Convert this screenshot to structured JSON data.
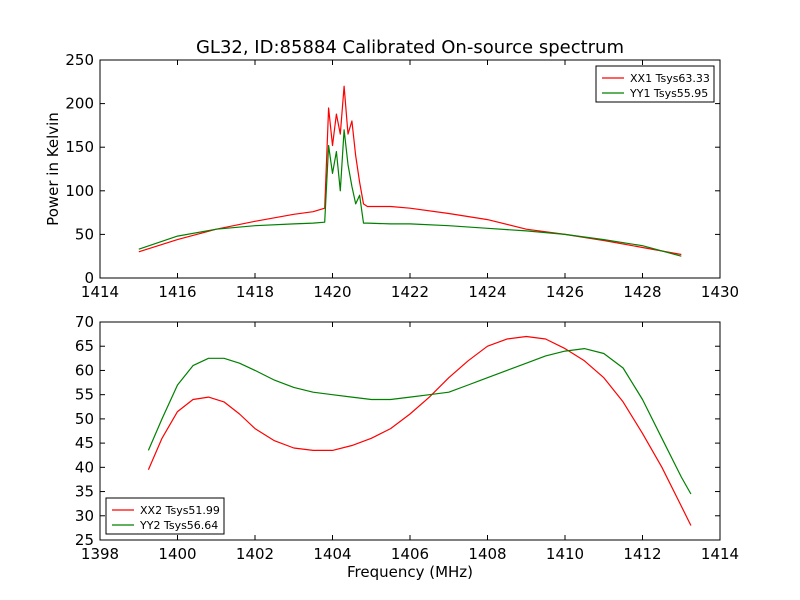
{
  "chart_data": [
    {
      "type": "line",
      "title": "GL32, ID:85884 Calibrated On-source spectrum",
      "xlabel": "",
      "ylabel": "Power in Kelvin",
      "xlim": [
        1414,
        1430
      ],
      "ylim": [
        0,
        250
      ],
      "xticks": [
        1414,
        1416,
        1418,
        1420,
        1422,
        1424,
        1426,
        1428,
        1430
      ],
      "yticks": [
        0,
        50,
        100,
        150,
        200,
        250
      ],
      "grid": false,
      "legend": "top-right",
      "series": [
        {
          "name": "XX1 Tsys63.33",
          "color": "#ff0000",
          "x": [
            1415,
            1416,
            1417,
            1418,
            1419,
            1419.5,
            1419.8,
            1419.9,
            1420.0,
            1420.1,
            1420.2,
            1420.3,
            1420.4,
            1420.5,
            1420.6,
            1420.7,
            1420.8,
            1420.9,
            1421.5,
            1422,
            1423,
            1424,
            1425,
            1426,
            1427,
            1428,
            1429
          ],
          "values": [
            30,
            44,
            56,
            65,
            73,
            76,
            80,
            195,
            152,
            188,
            165,
            220,
            165,
            180,
            140,
            110,
            85,
            82,
            82,
            80,
            74,
            67,
            56,
            50,
            43,
            35,
            27
          ]
        },
        {
          "name": "YY1 Tsys55.95",
          "color": "#008000",
          "x": [
            1415,
            1416,
            1417,
            1418,
            1419,
            1419.5,
            1419.8,
            1419.9,
            1420.0,
            1420.1,
            1420.2,
            1420.3,
            1420.4,
            1420.5,
            1420.6,
            1420.7,
            1420.8,
            1420.9,
            1421.5,
            1422,
            1423,
            1424,
            1425,
            1426,
            1427,
            1428,
            1429
          ],
          "values": [
            33,
            48,
            56,
            60,
            62,
            63,
            64,
            152,
            120,
            145,
            100,
            170,
            130,
            105,
            85,
            95,
            63,
            63,
            62,
            62,
            60,
            57,
            54,
            50,
            44,
            37,
            25
          ]
        }
      ]
    },
    {
      "type": "line",
      "title": "",
      "xlabel": "Frequency (MHz)",
      "ylabel": "",
      "xlim": [
        1398,
        1414
      ],
      "ylim": [
        25,
        70
      ],
      "xticks": [
        1398,
        1400,
        1402,
        1404,
        1406,
        1408,
        1410,
        1412,
        1414
      ],
      "yticks": [
        25,
        30,
        35,
        40,
        45,
        50,
        55,
        60,
        65,
        70
      ],
      "grid": false,
      "legend": "bottom-left",
      "series": [
        {
          "name": "XX2 Tsys51.99",
          "color": "#ff0000",
          "x": [
            1399.25,
            1399.6,
            1400,
            1400.4,
            1400.8,
            1401.2,
            1401.6,
            1402,
            1402.5,
            1403,
            1403.5,
            1404,
            1404.5,
            1405,
            1405.5,
            1406,
            1406.5,
            1407,
            1407.5,
            1408,
            1408.5,
            1409,
            1409.5,
            1410,
            1410.5,
            1411,
            1411.5,
            1412,
            1412.5,
            1413,
            1413.25
          ],
          "values": [
            39.5,
            46,
            51.5,
            54,
            54.5,
            53.5,
            51,
            48,
            45.5,
            44,
            43.5,
            43.5,
            44.5,
            46,
            48,
            51,
            54.5,
            58.5,
            62,
            65,
            66.5,
            67,
            66.5,
            64.5,
            62,
            58.5,
            53.5,
            47,
            40,
            32,
            28
          ]
        },
        {
          "name": "YY2 Tsys56.64",
          "color": "#008000",
          "x": [
            1399.25,
            1399.6,
            1400,
            1400.4,
            1400.8,
            1401.2,
            1401.6,
            1402,
            1402.5,
            1403,
            1403.5,
            1404,
            1404.5,
            1405,
            1405.5,
            1406,
            1406.5,
            1407,
            1407.5,
            1408,
            1408.5,
            1409,
            1409.5,
            1410,
            1410.5,
            1411,
            1411.5,
            1412,
            1412.5,
            1413,
            1413.25
          ],
          "values": [
            43.5,
            50,
            57,
            61,
            62.5,
            62.5,
            61.5,
            60,
            58,
            56.5,
            55.5,
            55,
            54.5,
            54,
            54,
            54.5,
            55,
            55.5,
            57,
            58.5,
            60,
            61.5,
            63,
            64,
            64.5,
            63.5,
            60.5,
            54,
            46,
            38,
            34.5
          ]
        }
      ]
    }
  ]
}
